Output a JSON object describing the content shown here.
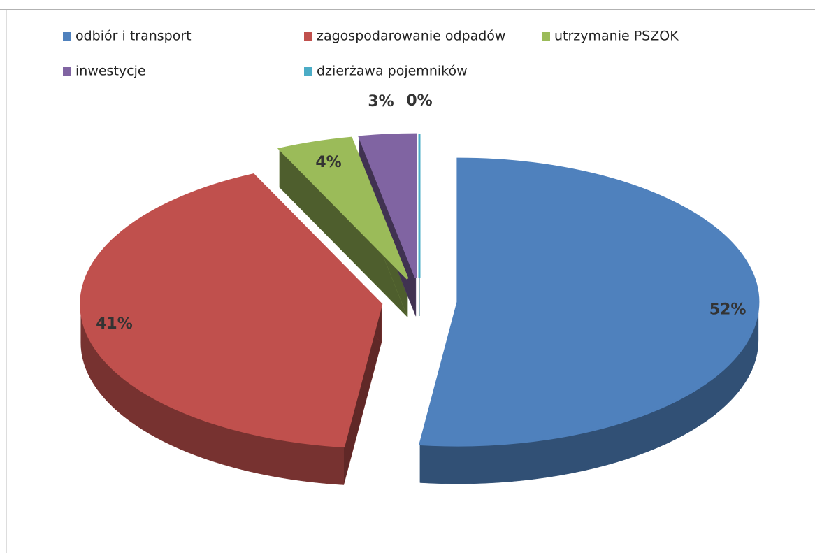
{
  "chart_data": {
    "type": "pie",
    "categories": [
      "odbiór i transport",
      "zagospodarowanie odpadów",
      "utrzymanie PSZOK",
      "inwestycje",
      "dzierżawa pojemników"
    ],
    "values": [
      52,
      41,
      4,
      3,
      0
    ],
    "value_labels": [
      "52%",
      "41%",
      "4%",
      "3%",
      "0%"
    ],
    "colors": [
      "#4f81bd",
      "#c0504d",
      "#9bbb59",
      "#8064a2",
      "#4bacc6"
    ],
    "legend": "top"
  }
}
